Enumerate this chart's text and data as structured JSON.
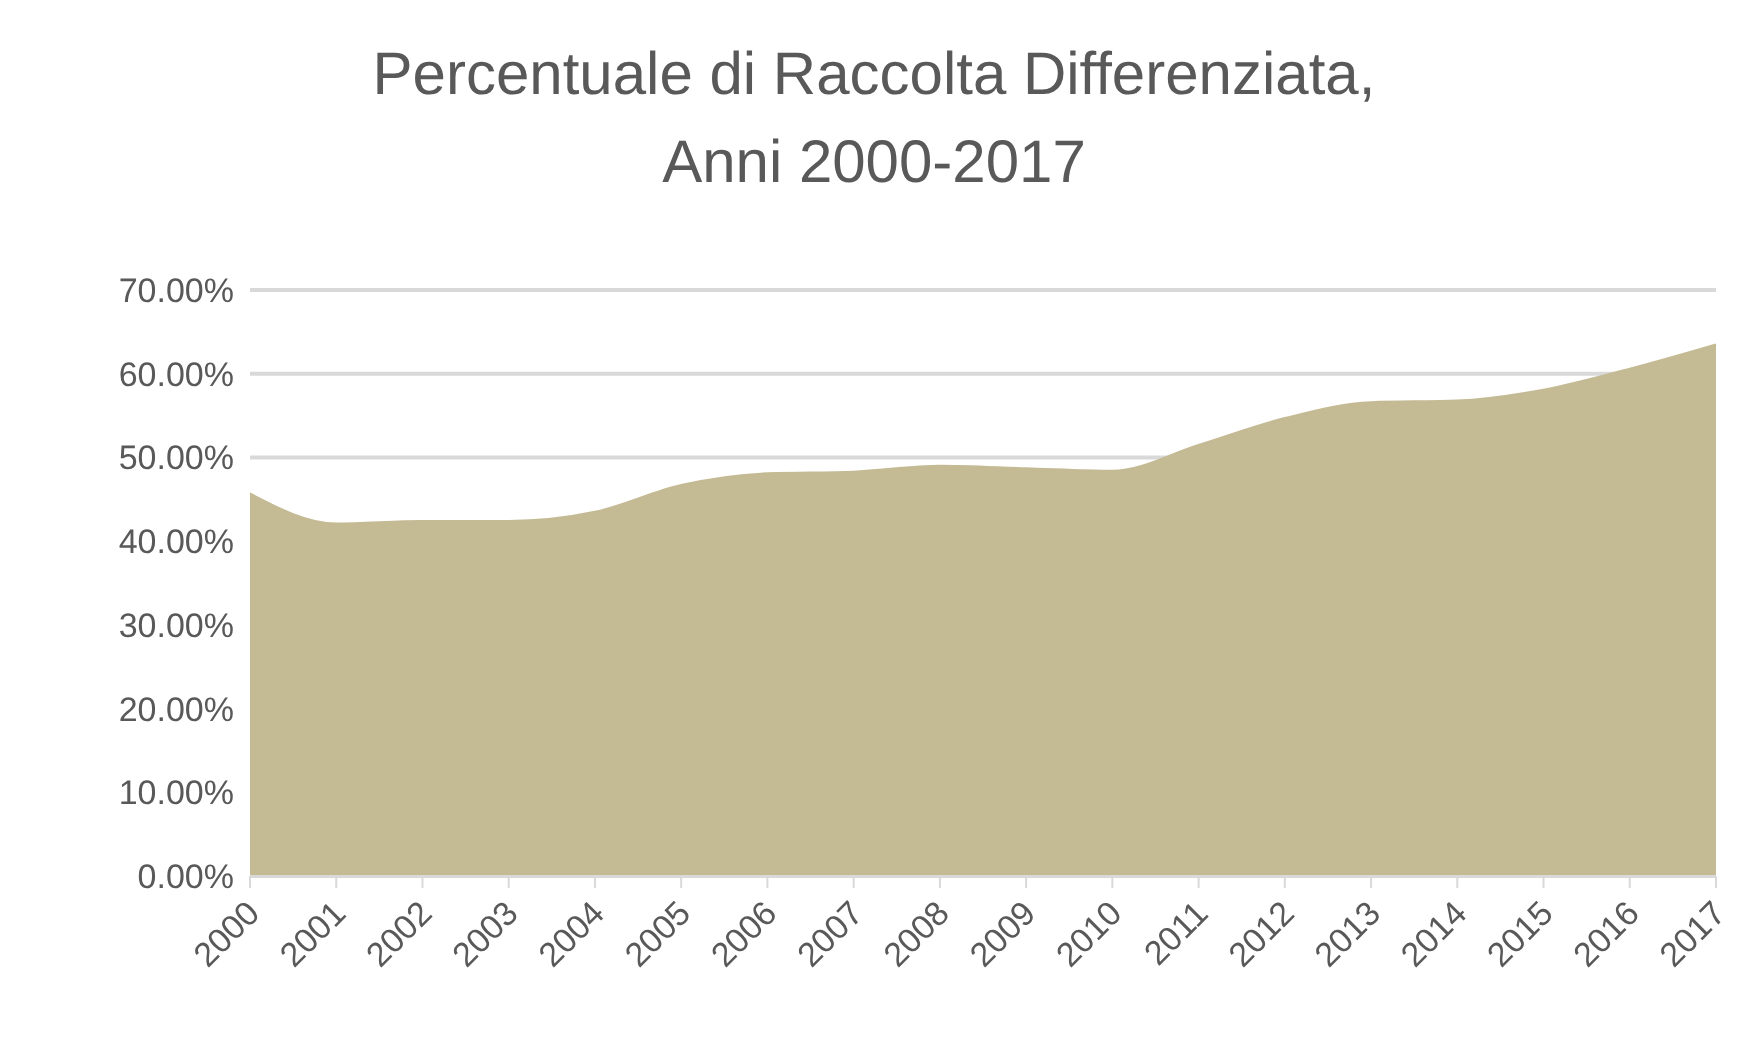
{
  "chart_data": {
    "type": "area",
    "title": "Percentuale di Raccolta Differenziata,\nAnni 2000-2017",
    "categories": [
      "2000",
      "2001",
      "2002",
      "2003",
      "2004",
      "2005",
      "2006",
      "2007",
      "2008",
      "2009",
      "2010",
      "2011",
      "2012",
      "2013",
      "2014",
      "2015",
      "2016",
      "2017"
    ],
    "series": [
      {
        "color": "#c4ba94",
        "values": [
          45.7,
          42.1,
          42.4,
          42.4,
          43.5,
          46.7,
          48.1,
          48.3,
          49.0,
          48.7,
          48.4,
          51.5,
          54.7,
          56.6,
          56.8,
          58.1,
          60.6,
          63.5
        ]
      }
    ],
    "ylim": [
      0,
      70
    ],
    "yticks": [
      {
        "value": 0,
        "label": "0.00%"
      },
      {
        "value": 10,
        "label": "10.00%"
      },
      {
        "value": 20,
        "label": "20.00%"
      },
      {
        "value": 30,
        "label": "30.00%"
      },
      {
        "value": 40,
        "label": "40.00%"
      },
      {
        "value": 50,
        "label": "50.00%"
      },
      {
        "value": 60,
        "label": "60.00%"
      },
      {
        "value": 70,
        "label": "70.00%"
      }
    ],
    "grid": "y",
    "legend": false
  }
}
